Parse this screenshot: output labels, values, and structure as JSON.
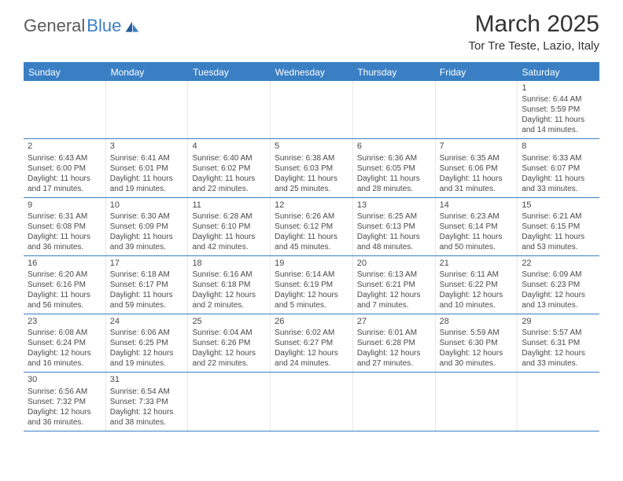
{
  "logo": {
    "general": "General",
    "blue": "Blue"
  },
  "title": "March 2025",
  "location": "Tor Tre Teste, Lazio, Italy",
  "dayHeaders": [
    "Sunday",
    "Monday",
    "Tuesday",
    "Wednesday",
    "Thursday",
    "Friday",
    "Saturday"
  ],
  "colors": {
    "accent": "#3a7fc4",
    "text": "#4a4a4a",
    "border": "#e8e8e8",
    "background": "#ffffff"
  },
  "weeks": [
    [
      null,
      null,
      null,
      null,
      null,
      null,
      {
        "n": "1",
        "sr": "Sunrise: 6:44 AM",
        "ss": "Sunset: 5:59 PM",
        "d1": "Daylight: 11 hours",
        "d2": "and 14 minutes."
      }
    ],
    [
      {
        "n": "2",
        "sr": "Sunrise: 6:43 AM",
        "ss": "Sunset: 6:00 PM",
        "d1": "Daylight: 11 hours",
        "d2": "and 17 minutes."
      },
      {
        "n": "3",
        "sr": "Sunrise: 6:41 AM",
        "ss": "Sunset: 6:01 PM",
        "d1": "Daylight: 11 hours",
        "d2": "and 19 minutes."
      },
      {
        "n": "4",
        "sr": "Sunrise: 6:40 AM",
        "ss": "Sunset: 6:02 PM",
        "d1": "Daylight: 11 hours",
        "d2": "and 22 minutes."
      },
      {
        "n": "5",
        "sr": "Sunrise: 6:38 AM",
        "ss": "Sunset: 6:03 PM",
        "d1": "Daylight: 11 hours",
        "d2": "and 25 minutes."
      },
      {
        "n": "6",
        "sr": "Sunrise: 6:36 AM",
        "ss": "Sunset: 6:05 PM",
        "d1": "Daylight: 11 hours",
        "d2": "and 28 minutes."
      },
      {
        "n": "7",
        "sr": "Sunrise: 6:35 AM",
        "ss": "Sunset: 6:06 PM",
        "d1": "Daylight: 11 hours",
        "d2": "and 31 minutes."
      },
      {
        "n": "8",
        "sr": "Sunrise: 6:33 AM",
        "ss": "Sunset: 6:07 PM",
        "d1": "Daylight: 11 hours",
        "d2": "and 33 minutes."
      }
    ],
    [
      {
        "n": "9",
        "sr": "Sunrise: 6:31 AM",
        "ss": "Sunset: 6:08 PM",
        "d1": "Daylight: 11 hours",
        "d2": "and 36 minutes."
      },
      {
        "n": "10",
        "sr": "Sunrise: 6:30 AM",
        "ss": "Sunset: 6:09 PM",
        "d1": "Daylight: 11 hours",
        "d2": "and 39 minutes."
      },
      {
        "n": "11",
        "sr": "Sunrise: 6:28 AM",
        "ss": "Sunset: 6:10 PM",
        "d1": "Daylight: 11 hours",
        "d2": "and 42 minutes."
      },
      {
        "n": "12",
        "sr": "Sunrise: 6:26 AM",
        "ss": "Sunset: 6:12 PM",
        "d1": "Daylight: 11 hours",
        "d2": "and 45 minutes."
      },
      {
        "n": "13",
        "sr": "Sunrise: 6:25 AM",
        "ss": "Sunset: 6:13 PM",
        "d1": "Daylight: 11 hours",
        "d2": "and 48 minutes."
      },
      {
        "n": "14",
        "sr": "Sunrise: 6:23 AM",
        "ss": "Sunset: 6:14 PM",
        "d1": "Daylight: 11 hours",
        "d2": "and 50 minutes."
      },
      {
        "n": "15",
        "sr": "Sunrise: 6:21 AM",
        "ss": "Sunset: 6:15 PM",
        "d1": "Daylight: 11 hours",
        "d2": "and 53 minutes."
      }
    ],
    [
      {
        "n": "16",
        "sr": "Sunrise: 6:20 AM",
        "ss": "Sunset: 6:16 PM",
        "d1": "Daylight: 11 hours",
        "d2": "and 56 minutes."
      },
      {
        "n": "17",
        "sr": "Sunrise: 6:18 AM",
        "ss": "Sunset: 6:17 PM",
        "d1": "Daylight: 11 hours",
        "d2": "and 59 minutes."
      },
      {
        "n": "18",
        "sr": "Sunrise: 6:16 AM",
        "ss": "Sunset: 6:18 PM",
        "d1": "Daylight: 12 hours",
        "d2": "and 2 minutes."
      },
      {
        "n": "19",
        "sr": "Sunrise: 6:14 AM",
        "ss": "Sunset: 6:19 PM",
        "d1": "Daylight: 12 hours",
        "d2": "and 5 minutes."
      },
      {
        "n": "20",
        "sr": "Sunrise: 6:13 AM",
        "ss": "Sunset: 6:21 PM",
        "d1": "Daylight: 12 hours",
        "d2": "and 7 minutes."
      },
      {
        "n": "21",
        "sr": "Sunrise: 6:11 AM",
        "ss": "Sunset: 6:22 PM",
        "d1": "Daylight: 12 hours",
        "d2": "and 10 minutes."
      },
      {
        "n": "22",
        "sr": "Sunrise: 6:09 AM",
        "ss": "Sunset: 6:23 PM",
        "d1": "Daylight: 12 hours",
        "d2": "and 13 minutes."
      }
    ],
    [
      {
        "n": "23",
        "sr": "Sunrise: 6:08 AM",
        "ss": "Sunset: 6:24 PM",
        "d1": "Daylight: 12 hours",
        "d2": "and 16 minutes."
      },
      {
        "n": "24",
        "sr": "Sunrise: 6:06 AM",
        "ss": "Sunset: 6:25 PM",
        "d1": "Daylight: 12 hours",
        "d2": "and 19 minutes."
      },
      {
        "n": "25",
        "sr": "Sunrise: 6:04 AM",
        "ss": "Sunset: 6:26 PM",
        "d1": "Daylight: 12 hours",
        "d2": "and 22 minutes."
      },
      {
        "n": "26",
        "sr": "Sunrise: 6:02 AM",
        "ss": "Sunset: 6:27 PM",
        "d1": "Daylight: 12 hours",
        "d2": "and 24 minutes."
      },
      {
        "n": "27",
        "sr": "Sunrise: 6:01 AM",
        "ss": "Sunset: 6:28 PM",
        "d1": "Daylight: 12 hours",
        "d2": "and 27 minutes."
      },
      {
        "n": "28",
        "sr": "Sunrise: 5:59 AM",
        "ss": "Sunset: 6:30 PM",
        "d1": "Daylight: 12 hours",
        "d2": "and 30 minutes."
      },
      {
        "n": "29",
        "sr": "Sunrise: 5:57 AM",
        "ss": "Sunset: 6:31 PM",
        "d1": "Daylight: 12 hours",
        "d2": "and 33 minutes."
      }
    ],
    [
      {
        "n": "30",
        "sr": "Sunrise: 6:56 AM",
        "ss": "Sunset: 7:32 PM",
        "d1": "Daylight: 12 hours",
        "d2": "and 36 minutes."
      },
      {
        "n": "31",
        "sr": "Sunrise: 6:54 AM",
        "ss": "Sunset: 7:33 PM",
        "d1": "Daylight: 12 hours",
        "d2": "and 38 minutes."
      },
      null,
      null,
      null,
      null,
      null
    ]
  ]
}
